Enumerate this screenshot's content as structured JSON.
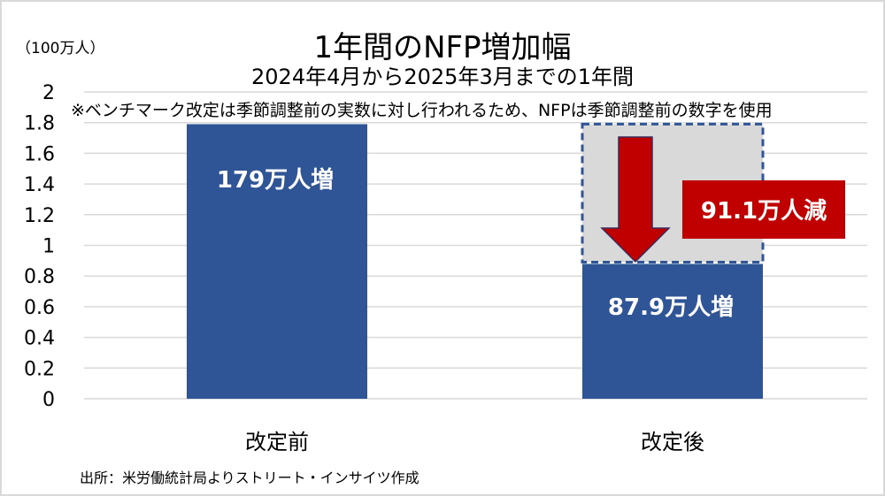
{
  "chart_data": {
    "type": "bar",
    "title": "1年間のNFP増加幅",
    "subtitle": "2024年4月から2025年3月までの1年間",
    "ylabel": "（100万人）",
    "note": "※ベンチマーク改定は季節調整前の実数に対し行われるため、NFPは季節調整前の数字を使用",
    "source": "出所：米労働統計局よりストリート・インサイツ作成",
    "categories": [
      "改定前",
      "改定後"
    ],
    "values": [
      1.79,
      0.879
    ],
    "data_labels": [
      "179万人増",
      "87.9万人増"
    ],
    "ylim": [
      0,
      2
    ],
    "yticks": [
      "0",
      "0.2",
      "0.4",
      "0.6",
      "0.8",
      "1",
      "1.2",
      "1.4",
      "1.6",
      "1.8",
      "2"
    ],
    "grid": true,
    "annotation": {
      "label": "91.1万人減",
      "value": 0.911
    },
    "colors": {
      "bar": "#2f5597",
      "ghost": "#d9d9d9",
      "arrow": "#c00000",
      "grid": "#d9d9d9"
    }
  }
}
